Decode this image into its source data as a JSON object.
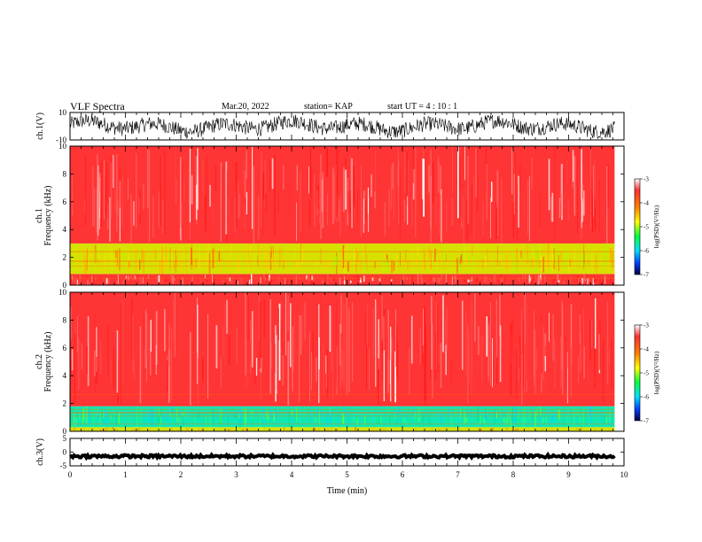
{
  "header": {
    "title": "VLF Spectra",
    "date": "Mar.20, 2022",
    "station": "station= KAP",
    "start_ut": "start UT =  4 : 10 : 1"
  },
  "chart_data": [
    {
      "type": "line",
      "name": "ch1-waveform",
      "ylabel": "ch.1(V)",
      "ylim": [
        -10,
        10
      ],
      "yticks": [
        "10",
        "-10"
      ],
      "xlim": [
        0,
        10
      ],
      "data_end_min": 9.83,
      "appearance": "dense noisy waveform, oscillating roughly between -7 and 8 V"
    },
    {
      "type": "heatmap",
      "name": "ch1-spectrogram",
      "ylabel": "ch.1\nFrequency (kHz)",
      "ylim": [
        0,
        10
      ],
      "yticks": [
        "0",
        "2",
        "4",
        "6",
        "8",
        "10"
      ],
      "xlim": [
        0,
        10
      ],
      "data_end_min": 9.83,
      "bands_khz": [
        {
          "from": 0,
          "to": 0.8,
          "level": "high (red/orange, striped)"
        },
        {
          "from": 0.8,
          "to": 3.0,
          "level": "mid (yellow/green)"
        },
        {
          "from": 3.0,
          "to": 10,
          "level": "high (red with white speckle)"
        }
      ],
      "colorbar": {
        "label": "log(PSD)(V²/Hz)",
        "range": [
          -7,
          -3
        ],
        "ticks": [
          "-3",
          "-4",
          "-5",
          "-6",
          "-7"
        ]
      }
    },
    {
      "type": "heatmap",
      "name": "ch2-spectrogram",
      "ylabel": "ch.2\nFrequency (kHz)",
      "ylim": [
        0,
        10
      ],
      "yticks": [
        "0",
        "2",
        "4",
        "6",
        "8",
        "10"
      ],
      "xlim": [
        0,
        10
      ],
      "data_end_min": 9.83,
      "bands_khz": [
        {
          "from": 0,
          "to": 0.3,
          "level": "mid (yellow)"
        },
        {
          "from": 0.3,
          "to": 1.8,
          "level": "low (cyan/green)"
        },
        {
          "from": 1.8,
          "to": 10,
          "level": "high (red/orange)"
        }
      ],
      "colorbar": {
        "label": "log(PSD)(V²/Hz)",
        "range": [
          -7,
          -3
        ],
        "ticks": [
          "-3",
          "-4",
          "-5",
          "-6",
          "-7"
        ]
      }
    },
    {
      "type": "line",
      "name": "ch3-waveform",
      "ylabel": "ch.3(V)",
      "ylim": [
        -5,
        5
      ],
      "yticks": [
        "5",
        "0",
        "-5"
      ],
      "xlim": [
        0,
        10
      ],
      "data_end_min": 9.83,
      "appearance": "thick flat band near -1.5 V"
    }
  ],
  "x_axis": {
    "label": "Time (min)",
    "ticks": [
      "0",
      "1",
      "2",
      "3",
      "4",
      "5",
      "6",
      "7",
      "8",
      "9",
      "10"
    ]
  },
  "colors": {
    "high": "#ff2a2a",
    "mid": "#e8e000",
    "low": "#00e0a0"
  }
}
